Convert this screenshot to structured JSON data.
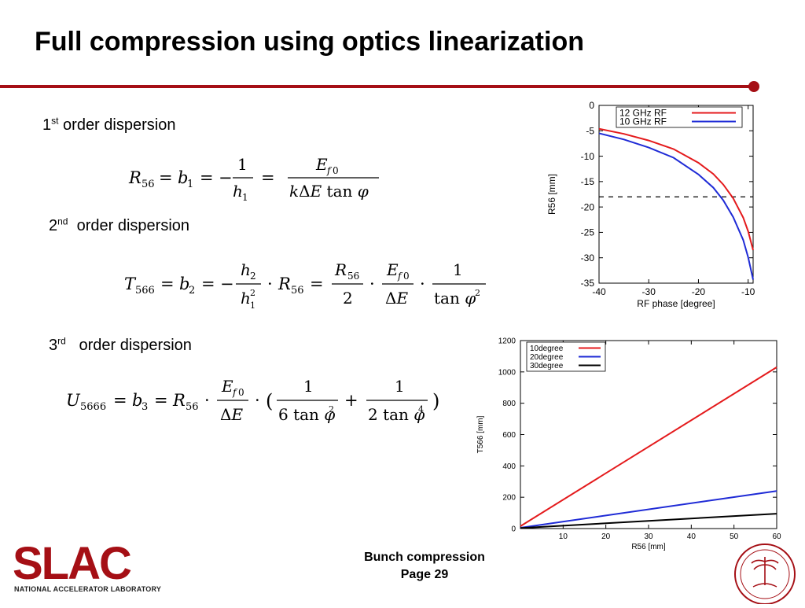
{
  "slide": {
    "title": "Full compression using optics linearization",
    "colors": {
      "accent": "#a50f15",
      "red_series": "#e41a1c",
      "blue_series": "#1f2bd6"
    }
  },
  "sections": [
    {
      "number": "1",
      "suffix": "st",
      "label": "order dispersion"
    },
    {
      "number": "2",
      "suffix": "nd",
      "label": "order dispersion"
    },
    {
      "number": "3",
      "suffix": "rd",
      "label": "order dispersion"
    }
  ],
  "footer": {
    "line1": "Bunch compression",
    "line2": "Page 29",
    "logo_text": "SLAC",
    "logo_subtitle": "NATIONAL ACCELERATOR LABORATORY"
  },
  "chart_data": [
    {
      "type": "line",
      "xlabel": "RF phase [degree]",
      "ylabel": "R56 [mm]",
      "xlim": [
        -40,
        -9
      ],
      "ylim": [
        -35,
        0
      ],
      "xticks": [
        -40,
        -30,
        -20,
        -10
      ],
      "yticks": [
        0,
        -5,
        -10,
        -15,
        -20,
        -25,
        -30,
        -35
      ],
      "legend_position": "top-right",
      "series": [
        {
          "name": "12 GHz RF",
          "color": "#e41a1c",
          "x": [
            -40,
            -35,
            -30,
            -25,
            -20,
            -17,
            -15,
            -13,
            -11,
            -10,
            -9
          ],
          "y": [
            -4.6,
            -5.6,
            -6.9,
            -8.6,
            -11.3,
            -13.5,
            -15.6,
            -18.3,
            -22.1,
            -24.8,
            -28.5
          ]
        },
        {
          "name": "10 GHz RF",
          "color": "#1f2bd6",
          "x": [
            -40,
            -35,
            -30,
            -25,
            -20,
            -17,
            -15,
            -13,
            -11,
            -10,
            -9
          ],
          "y": [
            -5.5,
            -6.7,
            -8.3,
            -10.3,
            -13.6,
            -16.2,
            -18.7,
            -22.0,
            -26.5,
            -29.9,
            -34.3
          ]
        }
      ],
      "reference_line": {
        "y": -18,
        "style": "dashed"
      }
    },
    {
      "type": "line",
      "xlabel": "R56 [mm]",
      "ylabel": "T566 [mm]",
      "xlim": [
        0,
        60
      ],
      "ylim": [
        0,
        1200
      ],
      "xticks": [
        10,
        20,
        30,
        40,
        50,
        60
      ],
      "yticks": [
        0,
        200,
        400,
        600,
        800,
        1000,
        1200
      ],
      "legend_position": "top-left",
      "series": [
        {
          "name": "10degree",
          "color": "#e41a1c",
          "x": [
            0,
            60
          ],
          "y": [
            15,
            1030
          ]
        },
        {
          "name": "20degree",
          "color": "#1f2bd6",
          "x": [
            0,
            60
          ],
          "y": [
            5,
            240
          ]
        },
        {
          "name": "30degree",
          "color": "#000000",
          "x": [
            0,
            60
          ],
          "y": [
            3,
            95
          ]
        }
      ]
    }
  ]
}
